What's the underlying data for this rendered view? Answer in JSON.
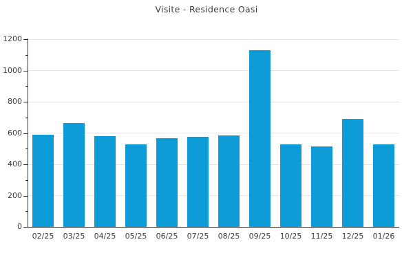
{
  "chart_data": {
    "type": "bar",
    "title": "Visite - Residence Oasi",
    "categories": [
      "02/25",
      "03/25",
      "04/25",
      "05/25",
      "06/25",
      "07/25",
      "08/25",
      "09/25",
      "10/25",
      "11/25",
      "12/25",
      "01/26"
    ],
    "values": [
      590,
      663,
      580,
      528,
      565,
      574,
      583,
      1128,
      526,
      516,
      690,
      528
    ],
    "xlabel": "",
    "ylabel": "",
    "ylim": [
      0,
      1200
    ],
    "yticks": [
      0,
      200,
      400,
      600,
      800,
      1000,
      1200
    ],
    "minor_tick_step": 100,
    "grid": "horizontal-major-only",
    "legend_position": "none",
    "bar_color": "#0e9cd8",
    "axis_color": "#333333",
    "grid_color": "#e4e4e4",
    "text_color": "#3c3c3c",
    "background_color": "#ffffff"
  }
}
